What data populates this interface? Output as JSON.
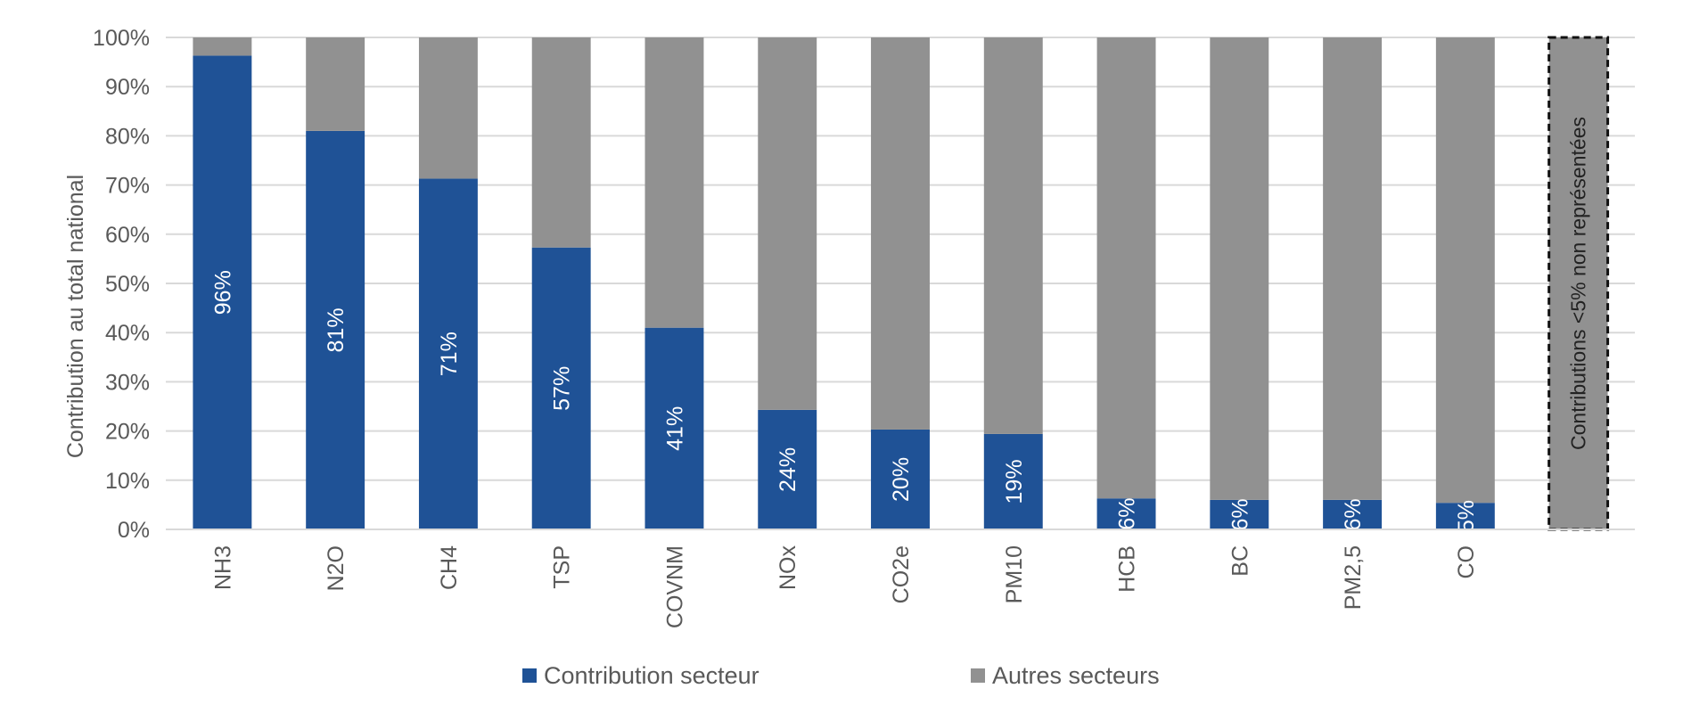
{
  "chart_data": {
    "type": "bar",
    "stacked": true,
    "ylabel": "Contribution au total national",
    "ylim": [
      0,
      100
    ],
    "yticks": [
      "0%",
      "10%",
      "20%",
      "30%",
      "40%",
      "50%",
      "60%",
      "70%",
      "80%",
      "90%",
      "100%"
    ],
    "categories": [
      "NH3",
      "N2O",
      "CH4",
      "TSP",
      "COVNM",
      "NOx",
      "CO2e",
      "PM10",
      "HCB",
      "BC",
      "PM2,5",
      "CO",
      ""
    ],
    "series": [
      {
        "name": "Contribution secteur",
        "color": "#1F5296",
        "values": [
          96.3,
          81.0,
          71.3,
          57.3,
          41.0,
          24.3,
          20.3,
          19.4,
          6.3,
          6.0,
          6.0,
          5.4,
          0
        ],
        "labels": [
          "96%",
          "81%",
          "71%",
          "57%",
          "41%",
          "24%",
          "20%",
          "19%",
          "6%",
          "6%",
          "6%",
          "5%",
          ""
        ]
      },
      {
        "name": "Autres secteurs",
        "color": "#919191",
        "values": [
          3.7,
          19.0,
          28.7,
          42.7,
          59.0,
          75.7,
          79.7,
          80.6,
          93.7,
          94.0,
          94.0,
          94.6,
          100
        ]
      }
    ],
    "annotation": "Contributions <5% non représentées",
    "legend_position": "bottom",
    "grid": true
  }
}
